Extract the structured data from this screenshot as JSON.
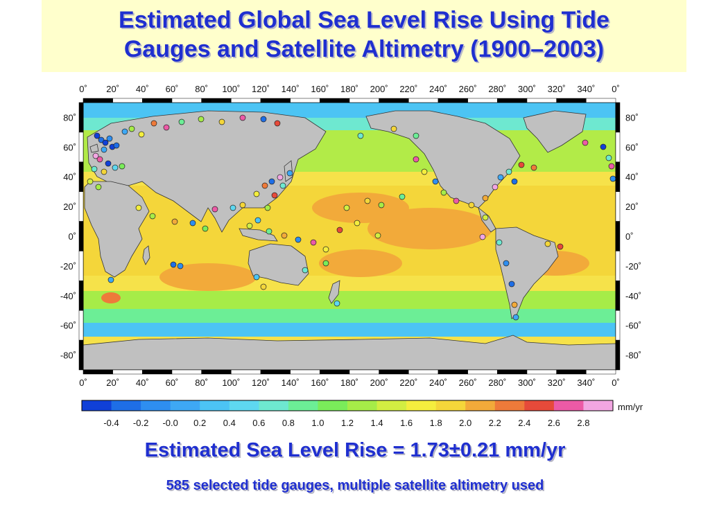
{
  "title": {
    "line1": "Estimated Global Sea Level Rise Using Tide",
    "line2": "Gauges and Satellite Altimetry (1900–2003)"
  },
  "map": {
    "lon_ticks": [
      "0˚",
      "20˚",
      "40˚",
      "60˚",
      "80˚",
      "100˚",
      "120˚",
      "140˚",
      "160˚",
      "180˚",
      "200˚",
      "220˚",
      "240˚",
      "260˚",
      "280˚",
      "300˚",
      "320˚",
      "340˚",
      "0˚"
    ],
    "lat_ticks": [
      "80˚",
      "60˚",
      "40˚",
      "20˚",
      "0˚",
      "-20˚",
      "-40˚",
      "-60˚",
      "-80˚"
    ],
    "lon_range": [
      0,
      360
    ],
    "lat_range": [
      -90,
      90
    ],
    "ocean_color": "#f6e24a",
    "land_color": "#c0c0c0",
    "coast_color": "#333333"
  },
  "colorbar": {
    "unit": "mm/yr",
    "labels": [
      "-0.4",
      "-0.2",
      "-0.0",
      "0.2",
      "0.4",
      "0.6",
      "0.8",
      "1.0",
      "1.2",
      "1.4",
      "1.6",
      "1.8",
      "2.0",
      "2.2",
      "2.4",
      "2.6",
      "2.8"
    ],
    "colors": [
      "#1040d8",
      "#1e6ee6",
      "#2e8ef0",
      "#3ea8f4",
      "#4cc4f4",
      "#5ed8f0",
      "#6ee8d0",
      "#6cee96",
      "#7aec5a",
      "#a6ec48",
      "#d2ee42",
      "#f4ee3e",
      "#f4d63a",
      "#f2aa3a",
      "#ee7a3a",
      "#e64a3a",
      "#ec5aa6",
      "#f2a6e2"
    ]
  },
  "result": {
    "main": "Estimated Sea Level Rise = 1.73±0.21 mm/yr",
    "sub": "585 selected tide gauges, multiple satellite altimetry used"
  }
}
